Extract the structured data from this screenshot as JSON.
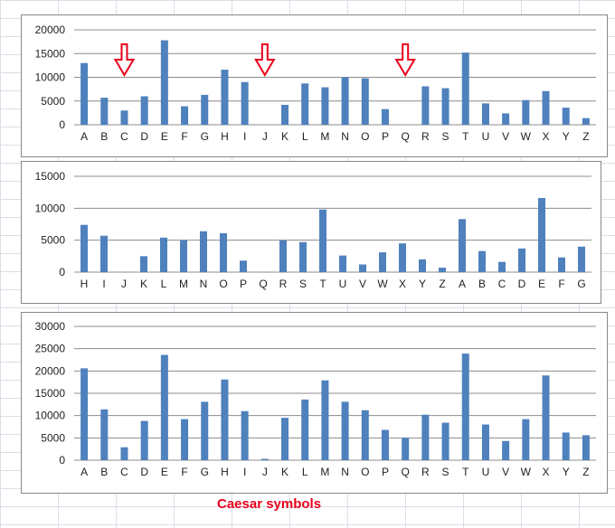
{
  "caption": "Caesar symbols",
  "colors": {
    "bar": "#4f81bd",
    "arrow": "#e8001c",
    "gridline": "#8c8c8c",
    "caption": "#e8001c"
  },
  "chart_data": [
    {
      "type": "bar",
      "categories": [
        "A",
        "B",
        "C",
        "D",
        "E",
        "F",
        "G",
        "H",
        "I",
        "J",
        "K",
        "L",
        "M",
        "N",
        "O",
        "P",
        "Q",
        "R",
        "S",
        "T",
        "U",
        "V",
        "W",
        "X",
        "Y",
        "Z"
      ],
      "values": [
        13000,
        5700,
        3000,
        6000,
        17800,
        3900,
        6300,
        11600,
        9000,
        0,
        4200,
        8700,
        7900,
        10000,
        9800,
        3300,
        0,
        8100,
        7700,
        15200,
        4500,
        2400,
        5200,
        7100,
        3600,
        1400
      ],
      "yticks": [
        0,
        5000,
        10000,
        15000,
        20000
      ],
      "ylim": [
        0,
        20000
      ],
      "grid": true,
      "annotations": [
        {
          "type": "down-arrow",
          "category": "C"
        },
        {
          "type": "down-arrow",
          "category": "J"
        },
        {
          "type": "down-arrow",
          "category": "Q"
        }
      ]
    },
    {
      "type": "bar",
      "categories": [
        "H",
        "I",
        "J",
        "K",
        "L",
        "M",
        "N",
        "O",
        "P",
        "Q",
        "R",
        "S",
        "T",
        "U",
        "V",
        "W",
        "X",
        "Y",
        "Z",
        "A",
        "B",
        "C",
        "D",
        "E",
        "F",
        "G"
      ],
      "values": [
        7400,
        5700,
        0,
        2500,
        5400,
        5000,
        6400,
        6100,
        1800,
        0,
        5000,
        4700,
        9800,
        2600,
        1200,
        3100,
        4500,
        2000,
        700,
        8300,
        3300,
        1600,
        3700,
        11600,
        2300,
        4000
      ],
      "yticks": [
        0,
        5000,
        10000,
        15000
      ],
      "ylim": [
        0,
        15000
      ],
      "grid": true
    },
    {
      "type": "bar",
      "categories": [
        "A",
        "B",
        "C",
        "D",
        "E",
        "F",
        "G",
        "H",
        "I",
        "J",
        "K",
        "L",
        "M",
        "N",
        "O",
        "P",
        "Q",
        "R",
        "S",
        "T",
        "U",
        "V",
        "W",
        "X",
        "Y",
        "Z"
      ],
      "values": [
        20600,
        11400,
        2900,
        8800,
        23600,
        9200,
        13100,
        18100,
        11000,
        300,
        9500,
        13600,
        17900,
        13100,
        11200,
        6800,
        5000,
        10200,
        8400,
        23900,
        8000,
        4300,
        9200,
        19000,
        6200,
        5600
      ],
      "yticks": [
        0,
        5000,
        10000,
        15000,
        20000,
        25000,
        30000
      ],
      "ylim": [
        0,
        30000
      ],
      "grid": true
    }
  ]
}
